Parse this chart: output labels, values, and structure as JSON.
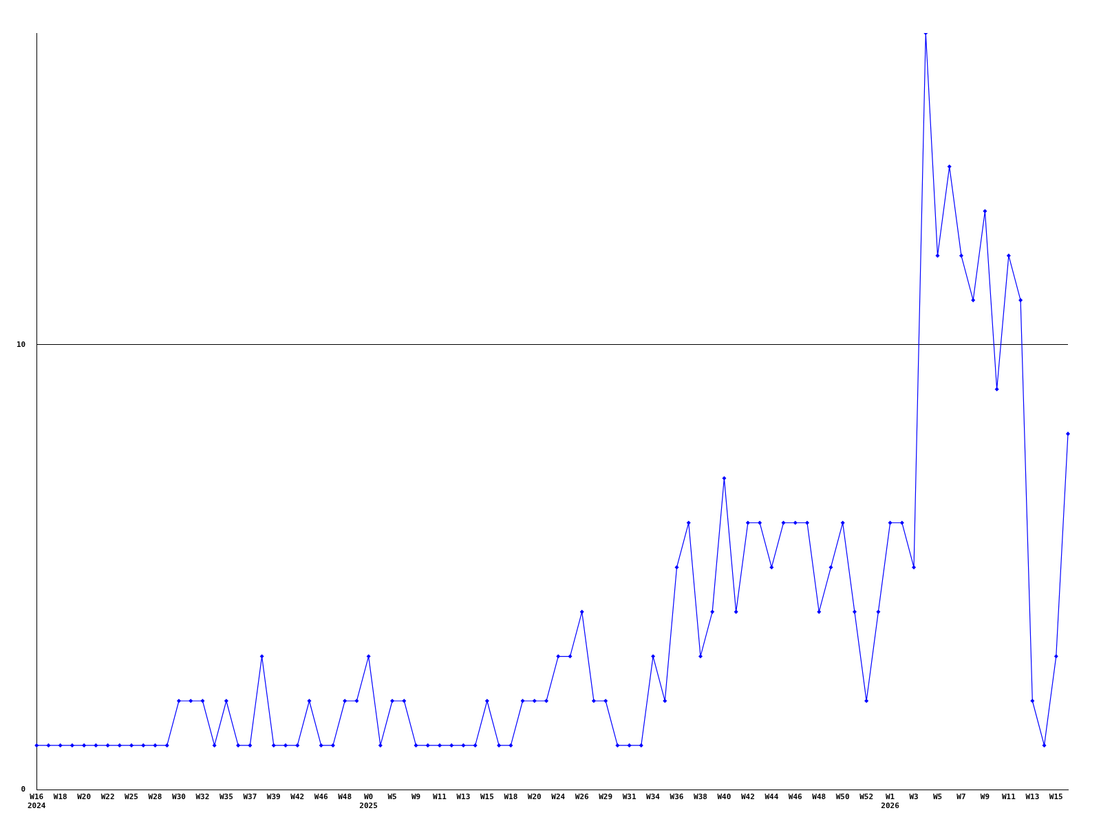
{
  "chart_data": {
    "type": "line",
    "categories": [
      "W16 2024",
      null,
      "W18",
      null,
      "W20",
      null,
      "W22",
      null,
      "W25",
      null,
      "W28",
      null,
      "W30",
      null,
      "W32",
      null,
      "W35",
      null,
      "W37",
      null,
      "W39",
      null,
      "W42",
      null,
      "W46",
      null,
      "W48",
      null,
      "W0 2025",
      null,
      "W5",
      null,
      "W9",
      null,
      "W11",
      null,
      "W13",
      null,
      "W15",
      null,
      "W18",
      null,
      "W20",
      null,
      "W24",
      null,
      "W26",
      null,
      "W29",
      null,
      "W31",
      null,
      "W34",
      null,
      "W36",
      null,
      "W38",
      null,
      "W40",
      null,
      "W42",
      null,
      "W44",
      null,
      "W46",
      null,
      "W48",
      null,
      "W50",
      null,
      "W52",
      null,
      "W1 2026",
      null,
      "W3",
      null,
      "W5",
      null,
      "W7",
      null,
      "W9",
      null,
      "W11",
      null,
      "W13",
      null,
      "W15",
      null
    ],
    "series": [
      {
        "color": "#0000ff",
        "values": [
          1,
          1,
          1,
          1,
          1,
          1,
          1,
          1,
          1,
          1,
          1,
          1,
          2,
          2,
          2,
          1,
          2,
          1,
          1,
          3,
          1,
          1,
          1,
          2,
          1,
          1,
          2,
          2,
          3,
          1,
          2,
          2,
          1,
          1,
          1,
          1,
          1,
          1,
          2,
          1,
          1,
          2,
          2,
          2,
          3,
          3,
          4,
          2,
          2,
          1,
          1,
          1,
          3,
          2,
          5,
          6,
          3,
          4,
          7,
          4,
          6,
          6,
          5,
          6,
          6,
          6,
          4,
          5,
          6,
          4,
          2,
          4,
          6,
          6,
          5,
          17,
          12,
          14,
          12,
          11,
          13,
          9,
          12,
          11,
          2,
          1,
          3,
          8
        ]
      }
    ],
    "ylim": [
      0,
      17
    ],
    "yticks": [
      0,
      10
    ],
    "grid": "y",
    "marker": "diamond",
    "line_style": "solid",
    "legend": false
  }
}
